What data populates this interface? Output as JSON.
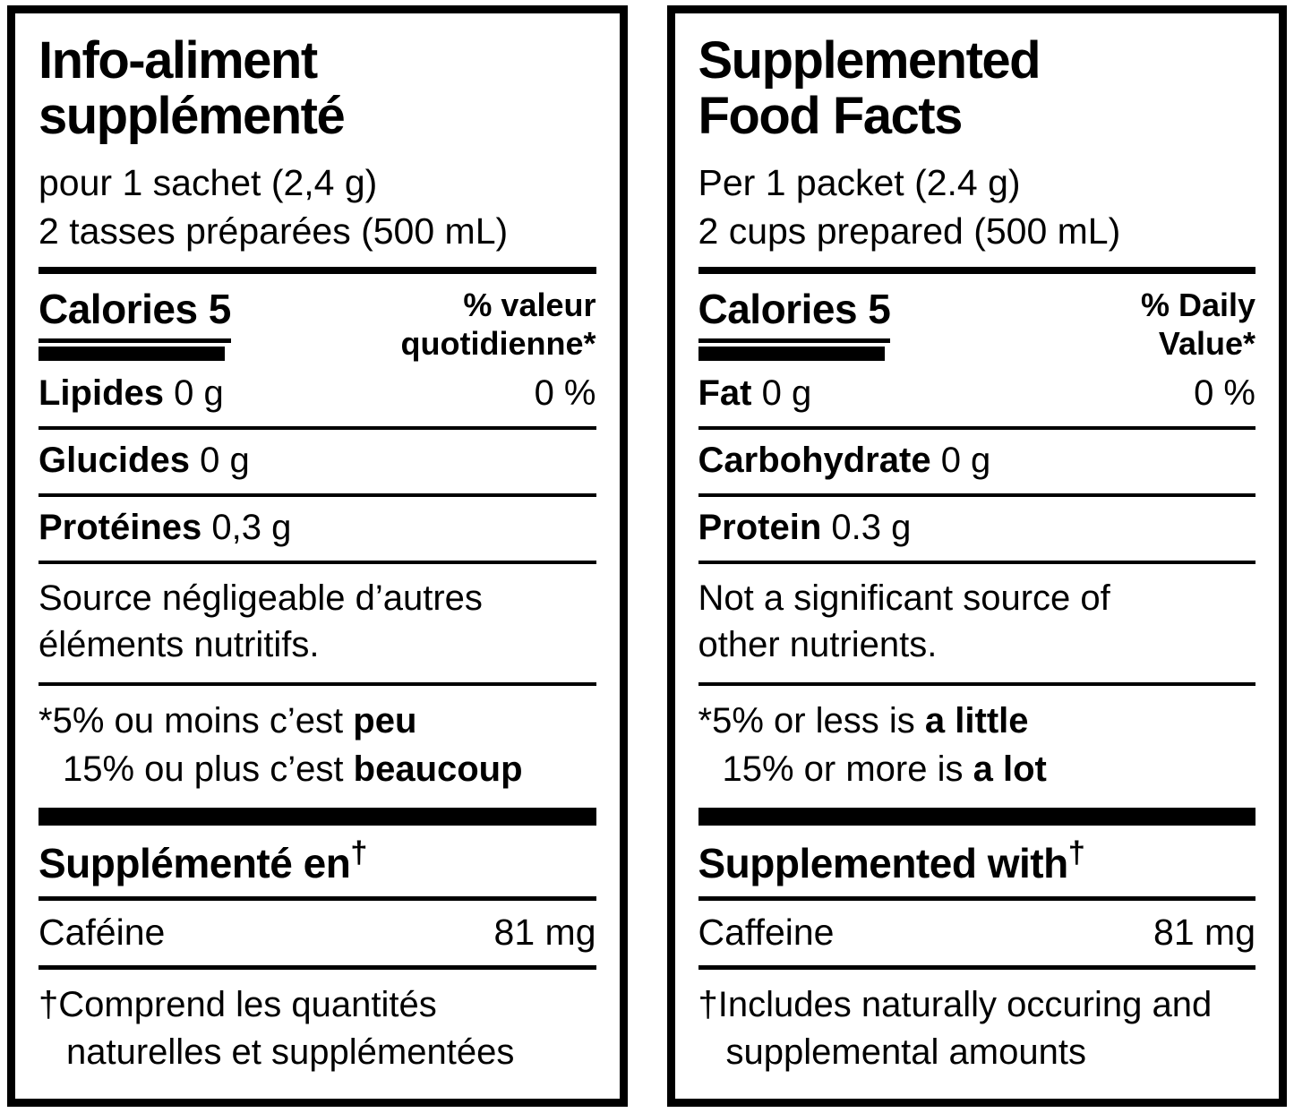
{
  "page": {
    "background_color": "#ffffff",
    "border_color": "#000000",
    "text_color": "#000000"
  },
  "panels": [
    {
      "lang": "fr",
      "title_lines": [
        "Info-aliment",
        "supplémenté"
      ],
      "serving_lines": [
        "pour 1 sachet (2,4 g)",
        "2 tasses préparées (500 mL)"
      ],
      "calories_label": "Calories 5",
      "dv_header_lines": [
        "% valeur",
        "quotidienne*"
      ],
      "rows": [
        {
          "name": "Lipides",
          "amount": "0 g",
          "dv": "0 %"
        },
        {
          "name": "Glucides",
          "amount": "0 g",
          "dv": ""
        },
        {
          "name": "Protéines",
          "amount": "0,3 g",
          "dv": ""
        }
      ],
      "negligible_lines": [
        "Source négligeable d’autres",
        "éléments nutritifs."
      ],
      "footnote_lines": [
        {
          "pre": "*5% ou moins c’est ",
          "bold": "peu"
        },
        {
          "pre": "15% ou plus c’est ",
          "bold": "beaucoup"
        }
      ],
      "supplemented_header": "Supplémenté en",
      "dagger": "†",
      "supplement_row": {
        "name": "Caféine",
        "amount": "81 mg"
      },
      "dagger_note_lines": [
        "†Comprend les quantités",
        "naturelles et supplémentées"
      ]
    },
    {
      "lang": "en",
      "title_lines": [
        "Supplemented",
        "Food Facts"
      ],
      "serving_lines": [
        "Per 1 packet (2.4 g)",
        "2 cups prepared (500 mL)"
      ],
      "calories_label": "Calories 5",
      "dv_header_lines": [
        "% Daily",
        "Value*"
      ],
      "rows": [
        {
          "name": "Fat",
          "amount": "0 g",
          "dv": "0 %"
        },
        {
          "name": "Carbohydrate",
          "amount": "0 g",
          "dv": ""
        },
        {
          "name": "Protein",
          "amount": "0.3 g",
          "dv": ""
        }
      ],
      "negligible_lines": [
        "Not a significant source of",
        "other nutrients."
      ],
      "footnote_lines": [
        {
          "pre": "*5% or less is ",
          "bold": "a little"
        },
        {
          "pre": "15% or more is ",
          "bold": "a lot"
        }
      ],
      "supplemented_header": "Supplemented with",
      "dagger": "†",
      "supplement_row": {
        "name": "Caffeine",
        "amount": "81 mg"
      },
      "dagger_note_lines": [
        "†Includes naturally occuring and",
        "supplemental amounts"
      ]
    }
  ]
}
